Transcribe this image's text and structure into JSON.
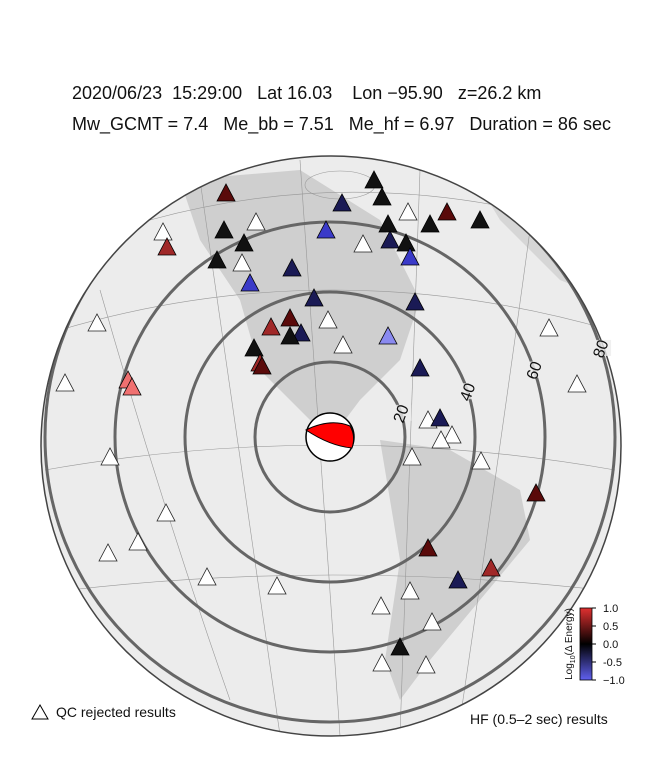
{
  "header": {
    "line1": "2020/06/23  15:29:00   Lat 16.03    Lon −95.90   z=26.2 km",
    "line2": "Mw_GCMT = 7.4   Me_bb = 7.51   Me_hf = 6.97   Duration = 86 sec"
  },
  "map": {
    "distance_rings": [
      20,
      40,
      60,
      80
    ]
  },
  "colorbar": {
    "title_prefix": "Log",
    "title_subscript": "10",
    "title_suffix": "(Δ Energy)",
    "ticks": [
      {
        "value": 1,
        "label": "1.0"
      },
      0.5,
      {
        "value": 0,
        "label": "0.0"
      },
      -0.5,
      {
        "value": -1,
        "label": "−1.0"
      }
    ],
    "range": [
      -1,
      1
    ]
  },
  "legend": {
    "qc_rejected": "QC rejected results",
    "hf_label": "HF (0.5–2 sec) results"
  }
}
